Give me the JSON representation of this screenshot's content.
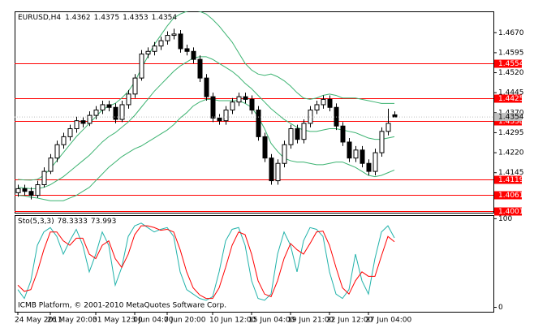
{
  "chart_data": {
    "type": "candlestick",
    "symbol_label": "EURUSD,H4",
    "ylim": [
      1.3995,
      1.475
    ],
    "yticks": [
      {
        "value": 1.467,
        "label": "1.4670"
      },
      1.4595,
      {
        "value": 1.452,
        "label": "1.4520"
      },
      1.4445,
      {
        "value": 1.437,
        "label": "1.4370"
      },
      1.4295,
      {
        "value": 1.422,
        "label": "1.4220"
      },
      1.4145
    ],
    "categories": [
      "24 May 2011",
      null,
      null,
      null,
      null,
      "26 May 20:00",
      null,
      null,
      null,
      null,
      null,
      null,
      "31 May 12:00",
      null,
      null,
      null,
      null,
      null,
      "3 Jun 04:00",
      null,
      null,
      null,
      null,
      "7 Jun 20:00",
      null,
      null,
      null,
      null,
      null,
      null,
      "10 Jun 12:00",
      null,
      null,
      null,
      null,
      null,
      "15 Jun 04:00",
      null,
      null,
      null,
      null,
      null,
      "19 Jun 21:00",
      null,
      null,
      null,
      null,
      null,
      "22 Jun 12:00",
      null,
      null,
      null,
      null,
      null,
      "27 Jun 04:00",
      null,
      null,
      null,
      null
    ],
    "candles": [
      [
        1.407,
        1.41,
        1.4055,
        1.4085
      ],
      [
        1.4085,
        1.41,
        1.406,
        1.4075
      ],
      [
        1.4075,
        1.409,
        1.4045,
        1.406
      ],
      [
        1.406,
        1.4115,
        1.405,
        1.41
      ],
      [
        1.41,
        1.4165,
        1.409,
        1.415
      ],
      [
        1.415,
        1.4215,
        1.414,
        1.42
      ],
      [
        1.42,
        1.4265,
        1.4185,
        1.425
      ],
      [
        1.425,
        1.4295,
        1.4235,
        1.428
      ],
      [
        1.428,
        1.4325,
        1.4265,
        1.431
      ],
      [
        1.431,
        1.4355,
        1.4295,
        1.434
      ],
      [
        1.434,
        1.4355,
        1.4315,
        1.433
      ],
      [
        1.433,
        1.4375,
        1.432,
        1.436
      ],
      [
        1.436,
        1.4395,
        1.4345,
        1.438
      ],
      [
        1.438,
        1.4415,
        1.4365,
        1.44
      ],
      [
        1.44,
        1.4415,
        1.4375,
        1.439
      ],
      [
        1.439,
        1.4405,
        1.433,
        1.4345
      ],
      [
        1.4345,
        1.4415,
        1.4335,
        1.44
      ],
      [
        1.44,
        1.4455,
        1.4385,
        1.444
      ],
      [
        1.444,
        1.4515,
        1.4425,
        1.45
      ],
      [
        1.45,
        1.4605,
        1.449,
        1.459
      ],
      [
        1.459,
        1.4615,
        1.4575,
        1.46
      ],
      [
        1.46,
        1.4635,
        1.4585,
        1.462
      ],
      [
        1.462,
        1.4655,
        1.4605,
        1.464
      ],
      [
        1.464,
        1.4675,
        1.4625,
        1.466
      ],
      [
        1.466,
        1.4685,
        1.4645,
        1.4665
      ],
      [
        1.4665,
        1.468,
        1.4595,
        1.461
      ],
      [
        1.461,
        1.4625,
        1.4585,
        1.46
      ],
      [
        1.46,
        1.4615,
        1.4555,
        1.457
      ],
      [
        1.457,
        1.4585,
        1.4485,
        1.45
      ],
      [
        1.45,
        1.4515,
        1.4415,
        1.443
      ],
      [
        1.443,
        1.4445,
        1.4335,
        1.435
      ],
      [
        1.435,
        1.4365,
        1.4325,
        1.434
      ],
      [
        1.434,
        1.4395,
        1.4325,
        1.438
      ],
      [
        1.438,
        1.4425,
        1.4365,
        1.441
      ],
      [
        1.441,
        1.4445,
        1.4395,
        1.443
      ],
      [
        1.443,
        1.4445,
        1.4405,
        1.442
      ],
      [
        1.442,
        1.4435,
        1.4365,
        1.438
      ],
      [
        1.438,
        1.4395,
        1.4265,
        1.428
      ],
      [
        1.428,
        1.4295,
        1.4185,
        1.42
      ],
      [
        1.42,
        1.4215,
        1.41,
        1.4115
      ],
      [
        1.4115,
        1.4195,
        1.41,
        1.418
      ],
      [
        1.418,
        1.4265,
        1.4165,
        1.425
      ],
      [
        1.425,
        1.4325,
        1.4235,
        1.431
      ],
      [
        1.431,
        1.4325,
        1.4255,
        1.427
      ],
      [
        1.427,
        1.4345,
        1.4255,
        1.433
      ],
      [
        1.433,
        1.4395,
        1.4315,
        1.438
      ],
      [
        1.438,
        1.4415,
        1.4365,
        1.44
      ],
      [
        1.44,
        1.4435,
        1.4385,
        1.442
      ],
      [
        1.442,
        1.4435,
        1.4375,
        1.439
      ],
      [
        1.439,
        1.4405,
        1.4305,
        1.432
      ],
      [
        1.432,
        1.4335,
        1.4245,
        1.426
      ],
      [
        1.426,
        1.4275,
        1.4185,
        1.42
      ],
      [
        1.42,
        1.4245,
        1.4185,
        1.423
      ],
      [
        1.423,
        1.4245,
        1.4165,
        1.418
      ],
      [
        1.418,
        1.4195,
        1.4135,
        1.415
      ],
      [
        1.415,
        1.4235,
        1.4135,
        1.422
      ],
      [
        1.422,
        1.4315,
        1.4205,
        1.43
      ],
      [
        1.43,
        1.4385,
        1.4285,
        1.433
      ],
      [
        1.4362,
        1.4375,
        1.4353,
        1.4354
      ]
    ],
    "bands": {
      "color": "#3cb371",
      "series": [
        {
          "values": [
            1.412,
            1.4118,
            1.4117,
            1.412,
            1.4135,
            1.416,
            1.419,
            1.422,
            1.425,
            1.428,
            1.4305,
            1.433,
            1.4355,
            1.438,
            1.4395,
            1.4405,
            1.4425,
            1.445,
            1.4485,
            1.4535,
            1.458,
            1.4625,
            1.466,
            1.4695,
            1.4725,
            1.474,
            1.475,
            1.4755,
            1.475,
            1.474,
            1.472,
            1.4695,
            1.4665,
            1.4635,
            1.4595,
            1.4555,
            1.453,
            1.4515,
            1.451,
            1.4515,
            1.4505,
            1.449,
            1.447,
            1.4445,
            1.4425,
            1.442,
            1.4425,
            1.4435,
            1.444,
            1.4435,
            1.4425,
            1.4425,
            1.4425,
            1.442,
            1.4415,
            1.441,
            1.4405,
            1.4405,
            1.4405
          ]
        },
        {
          "values": [
            1.409,
            1.4088,
            1.4085,
            1.4085,
            1.409,
            1.41,
            1.4115,
            1.413,
            1.415,
            1.417,
            1.419,
            1.421,
            1.4235,
            1.426,
            1.428,
            1.4295,
            1.4315,
            1.4335,
            1.436,
            1.439,
            1.442,
            1.445,
            1.4475,
            1.45,
            1.4525,
            1.4545,
            1.456,
            1.4575,
            1.458,
            1.458,
            1.457,
            1.4555,
            1.454,
            1.4525,
            1.4505,
            1.448,
            1.446,
            1.4435,
            1.441,
            1.4385,
            1.4365,
            1.4345,
            1.433,
            1.4315,
            1.4305,
            1.43,
            1.43,
            1.4305,
            1.431,
            1.431,
            1.4305,
            1.43,
            1.4295,
            1.4285,
            1.4275,
            1.427,
            1.427,
            1.4275,
            1.428
          ]
        },
        {
          "values": [
            1.406,
            1.4058,
            1.4053,
            1.405,
            1.4045,
            1.404,
            1.404,
            1.404,
            1.405,
            1.406,
            1.4075,
            1.409,
            1.4115,
            1.414,
            1.4165,
            1.4185,
            1.4205,
            1.422,
            1.4235,
            1.4245,
            1.426,
            1.4275,
            1.429,
            1.4305,
            1.4325,
            1.435,
            1.437,
            1.4395,
            1.441,
            1.442,
            1.442,
            1.4415,
            1.4415,
            1.4415,
            1.4415,
            1.4405,
            1.439,
            1.4355,
            1.431,
            1.4255,
            1.4225,
            1.42,
            1.419,
            1.4185,
            1.4185,
            1.418,
            1.4175,
            1.4175,
            1.418,
            1.4185,
            1.4185,
            1.4175,
            1.4165,
            1.415,
            1.4135,
            1.413,
            1.4135,
            1.4145,
            1.4155
          ]
        }
      ]
    },
    "levels": {
      "color": "#ff0000",
      "values": [
        1.4554,
        1.4425,
        1.4338,
        1.4119,
        1.4061,
        1.4001
      ]
    },
    "bid": 1.4354,
    "stochastic": {
      "label": "Sto(5,3,3)",
      "ylim": [
        -5,
        104
      ],
      "yticks": [
        0,
        100
      ],
      "series": [
        {
          "color": "#20b2aa",
          "values": [
            20,
            10,
            30,
            70,
            85,
            90,
            80,
            60,
            75,
            88,
            70,
            40,
            60,
            85,
            70,
            25,
            45,
            80,
            92,
            95,
            90,
            85,
            88,
            90,
            80,
            40,
            20,
            15,
            10,
            8,
            12,
            40,
            75,
            88,
            90,
            70,
            30,
            10,
            8,
            15,
            60,
            85,
            70,
            40,
            75,
            90,
            88,
            80,
            40,
            15,
            10,
            20,
            60,
            30,
            15,
            55,
            85,
            92,
            78.3333
          ]
        },
        {
          "color": "#ff0000",
          "values": [
            25,
            18,
            20,
            40,
            65,
            85,
            85,
            75,
            70,
            78,
            78,
            60,
            55,
            70,
            75,
            55,
            45,
            60,
            82,
            92,
            92,
            90,
            87,
            88,
            85,
            65,
            40,
            22,
            14,
            10,
            10,
            22,
            45,
            70,
            85,
            82,
            60,
            30,
            15,
            12,
            30,
            55,
            72,
            65,
            60,
            72,
            85,
            86,
            70,
            45,
            22,
            15,
            30,
            40,
            35,
            35,
            58,
            80,
            73.993
          ]
        }
      ]
    },
    "footer": "ICMB Platform, © 2001-2010 MetaQuotes Software Corp."
  }
}
